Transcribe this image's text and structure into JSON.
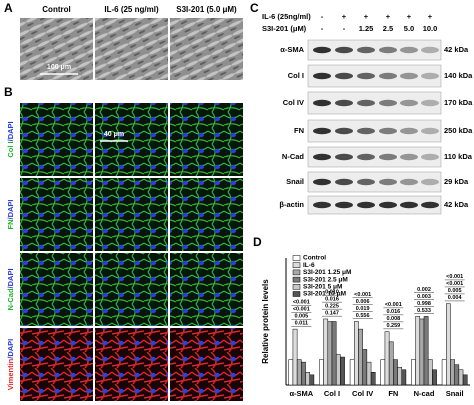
{
  "panel_a": {
    "label": "A",
    "columns": [
      "Control",
      "IL-6 (25 ng/ml)",
      "S3I-201 (5.0 μM)"
    ],
    "scale_bar": "100 μm"
  },
  "panel_b": {
    "label": "B",
    "scale_bar": "40 μm",
    "rows": [
      {
        "stain": "Col I",
        "counterstain": "/DAPI"
      },
      {
        "stain": "FN",
        "counterstain": "/DAPI"
      },
      {
        "stain": "N-Cad",
        "counterstain": "/DAPI"
      },
      {
        "stain": "Vimentin",
        "counterstain": "/DAPI"
      }
    ]
  },
  "panel_c": {
    "label": "C",
    "treatments": [
      {
        "name": "IL-6 (25ng/ml)",
        "levels": [
          "-",
          "+",
          "+",
          "+",
          "+",
          "+"
        ]
      },
      {
        "name": "S3I-201 (μM)",
        "levels": [
          "-",
          "-",
          "1.25",
          "2.5",
          "5.0",
          "10.0"
        ]
      }
    ],
    "blots": [
      {
        "name": "α-SMA",
        "size": "42 kDa"
      },
      {
        "name": "Col I",
        "size": "140 kDa"
      },
      {
        "name": "Col IV",
        "size": "170 kDa"
      },
      {
        "name": "FN",
        "size": "250 kDa"
      },
      {
        "name": "N-Cad",
        "size": "110 kDa"
      },
      {
        "name": "Snail",
        "size": "29 kDa"
      },
      {
        "name": "β-actin",
        "size": "42 kDa"
      }
    ]
  },
  "panel_d": {
    "label": "D"
  },
  "chart_data": {
    "type": "bar",
    "y_label": "Relative protein levels",
    "categories": [
      "α-SMA",
      "Col I",
      "Col IV",
      "FN",
      "N-cad",
      "Snail"
    ],
    "ylim": [
      0,
      5
    ],
    "series": [
      {
        "name": "Control",
        "color": "#ffffff",
        "values": [
          1,
          1,
          1,
          1,
          1,
          1
        ]
      },
      {
        "name": "IL-6",
        "color": "#dcdcdc",
        "values": [
          2.2,
          2.6,
          2.5,
          2.1,
          2.7,
          3.2
        ]
      },
      {
        "name": "S3I-201 1.25 μM",
        "color": "#a8a8a8",
        "values": [
          1.0,
          2.5,
          2.2,
          1.7,
          2.6,
          1.0
        ]
      },
      {
        "name": "S3I-201 2.5 μM",
        "color": "#7a7a7a",
        "values": [
          0.9,
          2.5,
          1.4,
          1.0,
          2.7,
          0.8
        ]
      },
      {
        "name": "S3I-201 5 μM",
        "color": "#c8c8c8",
        "values": [
          0.5,
          1.2,
          0.9,
          0.7,
          1.0,
          0.6
        ]
      },
      {
        "name": "S3I-201 10 μM",
        "color": "#555555",
        "values": [
          0.4,
          1.1,
          0.5,
          0.6,
          0.6,
          0.4
        ]
      }
    ],
    "annotations": [
      [
        "<0.001",
        "<0.001",
        "0.005",
        "0.011"
      ],
      [
        "0.010",
        "0.016",
        "0.225",
        "0.147"
      ],
      [
        "<0.001",
        "0.006",
        "0.019",
        "0.556"
      ],
      [
        "<0.001",
        "0.016",
        "0.008",
        "0.259"
      ],
      [
        "0.002",
        "0.003",
        "0.998",
        "0.533"
      ],
      [
        "<0.001",
        "<0.001",
        "0.005",
        "0.004"
      ]
    ]
  }
}
